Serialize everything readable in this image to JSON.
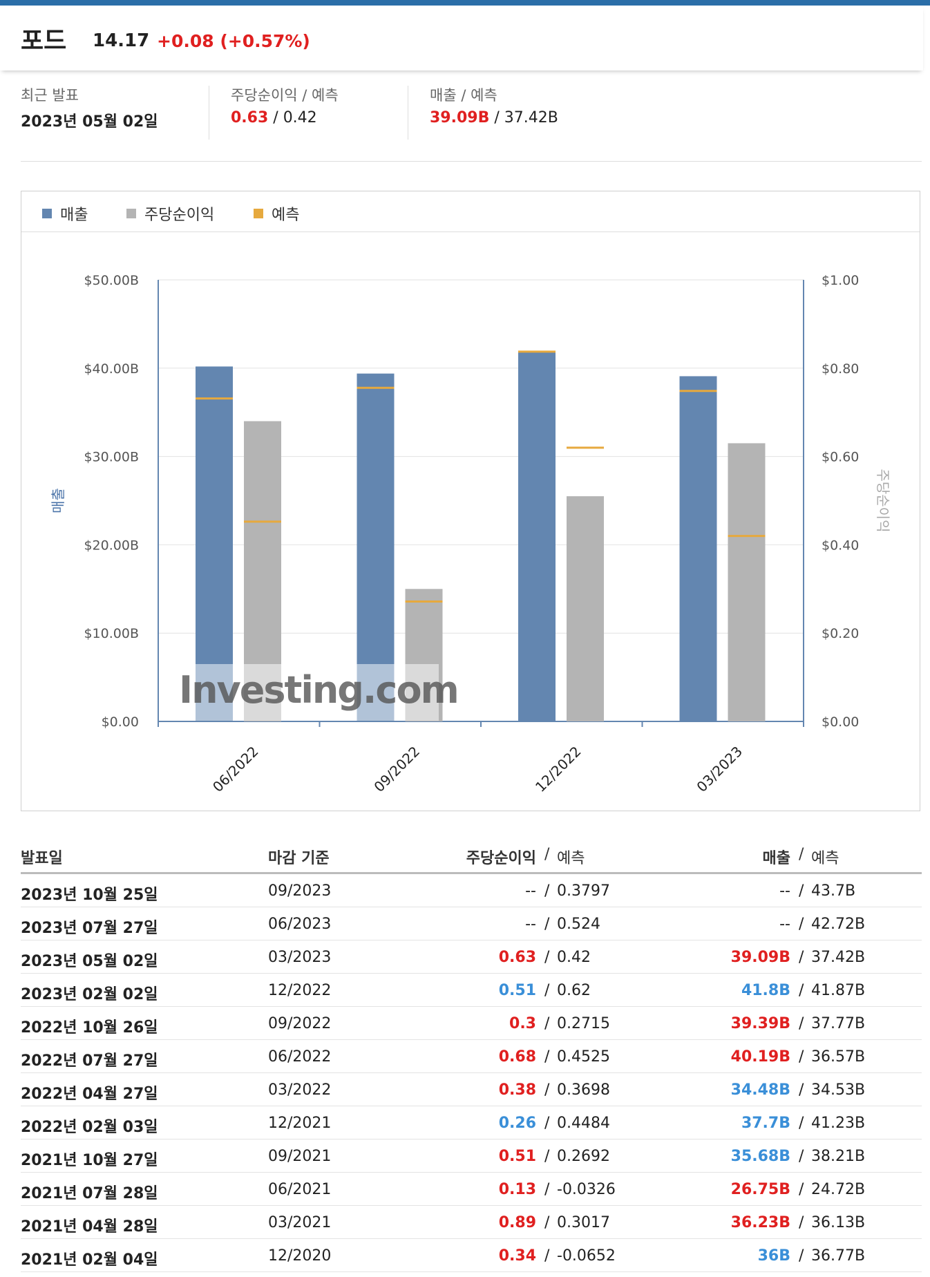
{
  "header": {
    "title": "포드",
    "price": "14.17",
    "change": "+0.08 (+0.57%)"
  },
  "summary": {
    "recent_label": "최근 발표",
    "recent_value": "2023년 05월 02일",
    "eps_label": "주당순이익 / 예측",
    "eps_actual": "0.63",
    "eps_forecast": "0.42",
    "rev_label": "매출 / 예측",
    "rev_actual": "39.09B",
    "rev_forecast": "37.42B"
  },
  "legend": [
    {
      "label": "매출",
      "color": "#6386b0"
    },
    {
      "label": "주당순이익",
      "color": "#b4b4b4"
    },
    {
      "label": "예측",
      "color": "#e6a93e"
    }
  ],
  "chart_data": {
    "type": "bar",
    "categories": [
      "06/2022",
      "09/2022",
      "12/2022",
      "03/2023"
    ],
    "series": [
      {
        "name": "매출",
        "axis": "left",
        "values": [
          40.19,
          39.39,
          41.8,
          39.09
        ],
        "forecast": [
          36.57,
          37.77,
          41.87,
          37.42
        ],
        "color": "#6386b0"
      },
      {
        "name": "주당순이익",
        "axis": "right",
        "values": [
          0.68,
          0.3,
          0.51,
          0.63
        ],
        "forecast": [
          0.4525,
          0.2715,
          0.62,
          0.42
        ],
        "color": "#b4b4b4"
      }
    ],
    "forecast_color": "#e6a93e",
    "ylabel_left": "매출",
    "ylabel_right": "주당순이익",
    "ylim_left": [
      0,
      50
    ],
    "ylim_right": [
      0,
      1.0
    ],
    "yticks_left": [
      "$0.00",
      "$10.00B",
      "$20.00B",
      "$30.00B",
      "$40.00B",
      "$50.00B"
    ],
    "yticks_right": [
      "$0.00",
      "$0.20",
      "$0.40",
      "$0.60",
      "$0.80",
      "$1.00"
    ],
    "grid": true,
    "legend_position": "top-left",
    "watermark": "Investing.com"
  },
  "table": {
    "headers": {
      "date": "발표일",
      "period": "마감 기준",
      "eps": "주당순이익",
      "eps_forecast": "예측",
      "rev": "매출",
      "rev_forecast": "예측",
      "sep": "/"
    },
    "rows": [
      {
        "date": "2023년 10월 25일",
        "period": "09/2023",
        "eps": "--",
        "eps_c": "",
        "eps_f": "0.3797",
        "rev": "--",
        "rev_c": "",
        "rev_f": "43.7B"
      },
      {
        "date": "2023년 07월 27일",
        "period": "06/2023",
        "eps": "--",
        "eps_c": "",
        "eps_f": "0.524",
        "rev": "--",
        "rev_c": "",
        "rev_f": "42.72B"
      },
      {
        "date": "2023년 05월 02일",
        "period": "03/2023",
        "eps": "0.63",
        "eps_c": "red",
        "eps_f": "0.42",
        "rev": "39.09B",
        "rev_c": "red",
        "rev_f": "37.42B"
      },
      {
        "date": "2023년 02월 02일",
        "period": "12/2022",
        "eps": "0.51",
        "eps_c": "blue",
        "eps_f": "0.62",
        "rev": "41.8B",
        "rev_c": "blue",
        "rev_f": "41.87B"
      },
      {
        "date": "2022년 10월 26일",
        "period": "09/2022",
        "eps": "0.3",
        "eps_c": "red",
        "eps_f": "0.2715",
        "rev": "39.39B",
        "rev_c": "red",
        "rev_f": "37.77B"
      },
      {
        "date": "2022년 07월 27일",
        "period": "06/2022",
        "eps": "0.68",
        "eps_c": "red",
        "eps_f": "0.4525",
        "rev": "40.19B",
        "rev_c": "red",
        "rev_f": "36.57B"
      },
      {
        "date": "2022년 04월 27일",
        "period": "03/2022",
        "eps": "0.38",
        "eps_c": "red",
        "eps_f": "0.3698",
        "rev": "34.48B",
        "rev_c": "blue",
        "rev_f": "34.53B"
      },
      {
        "date": "2022년 02월 03일",
        "period": "12/2021",
        "eps": "0.26",
        "eps_c": "blue",
        "eps_f": "0.4484",
        "rev": "37.7B",
        "rev_c": "blue",
        "rev_f": "41.23B"
      },
      {
        "date": "2021년 10월 27일",
        "period": "09/2021",
        "eps": "0.51",
        "eps_c": "red",
        "eps_f": "0.2692",
        "rev": "35.68B",
        "rev_c": "blue",
        "rev_f": "38.21B"
      },
      {
        "date": "2021년 07월 28일",
        "period": "06/2021",
        "eps": "0.13",
        "eps_c": "red",
        "eps_f": "-0.0326",
        "rev": "26.75B",
        "rev_c": "red",
        "rev_f": "24.72B"
      },
      {
        "date": "2021년 04월 28일",
        "period": "03/2021",
        "eps": "0.89",
        "eps_c": "red",
        "eps_f": "0.3017",
        "rev": "36.23B",
        "rev_c": "red",
        "rev_f": "36.13B"
      },
      {
        "date": "2021년 02월 04일",
        "period": "12/2020",
        "eps": "0.34",
        "eps_c": "red",
        "eps_f": "-0.0652",
        "rev": "36B",
        "rev_c": "blue",
        "rev_f": "36.77B"
      }
    ]
  }
}
